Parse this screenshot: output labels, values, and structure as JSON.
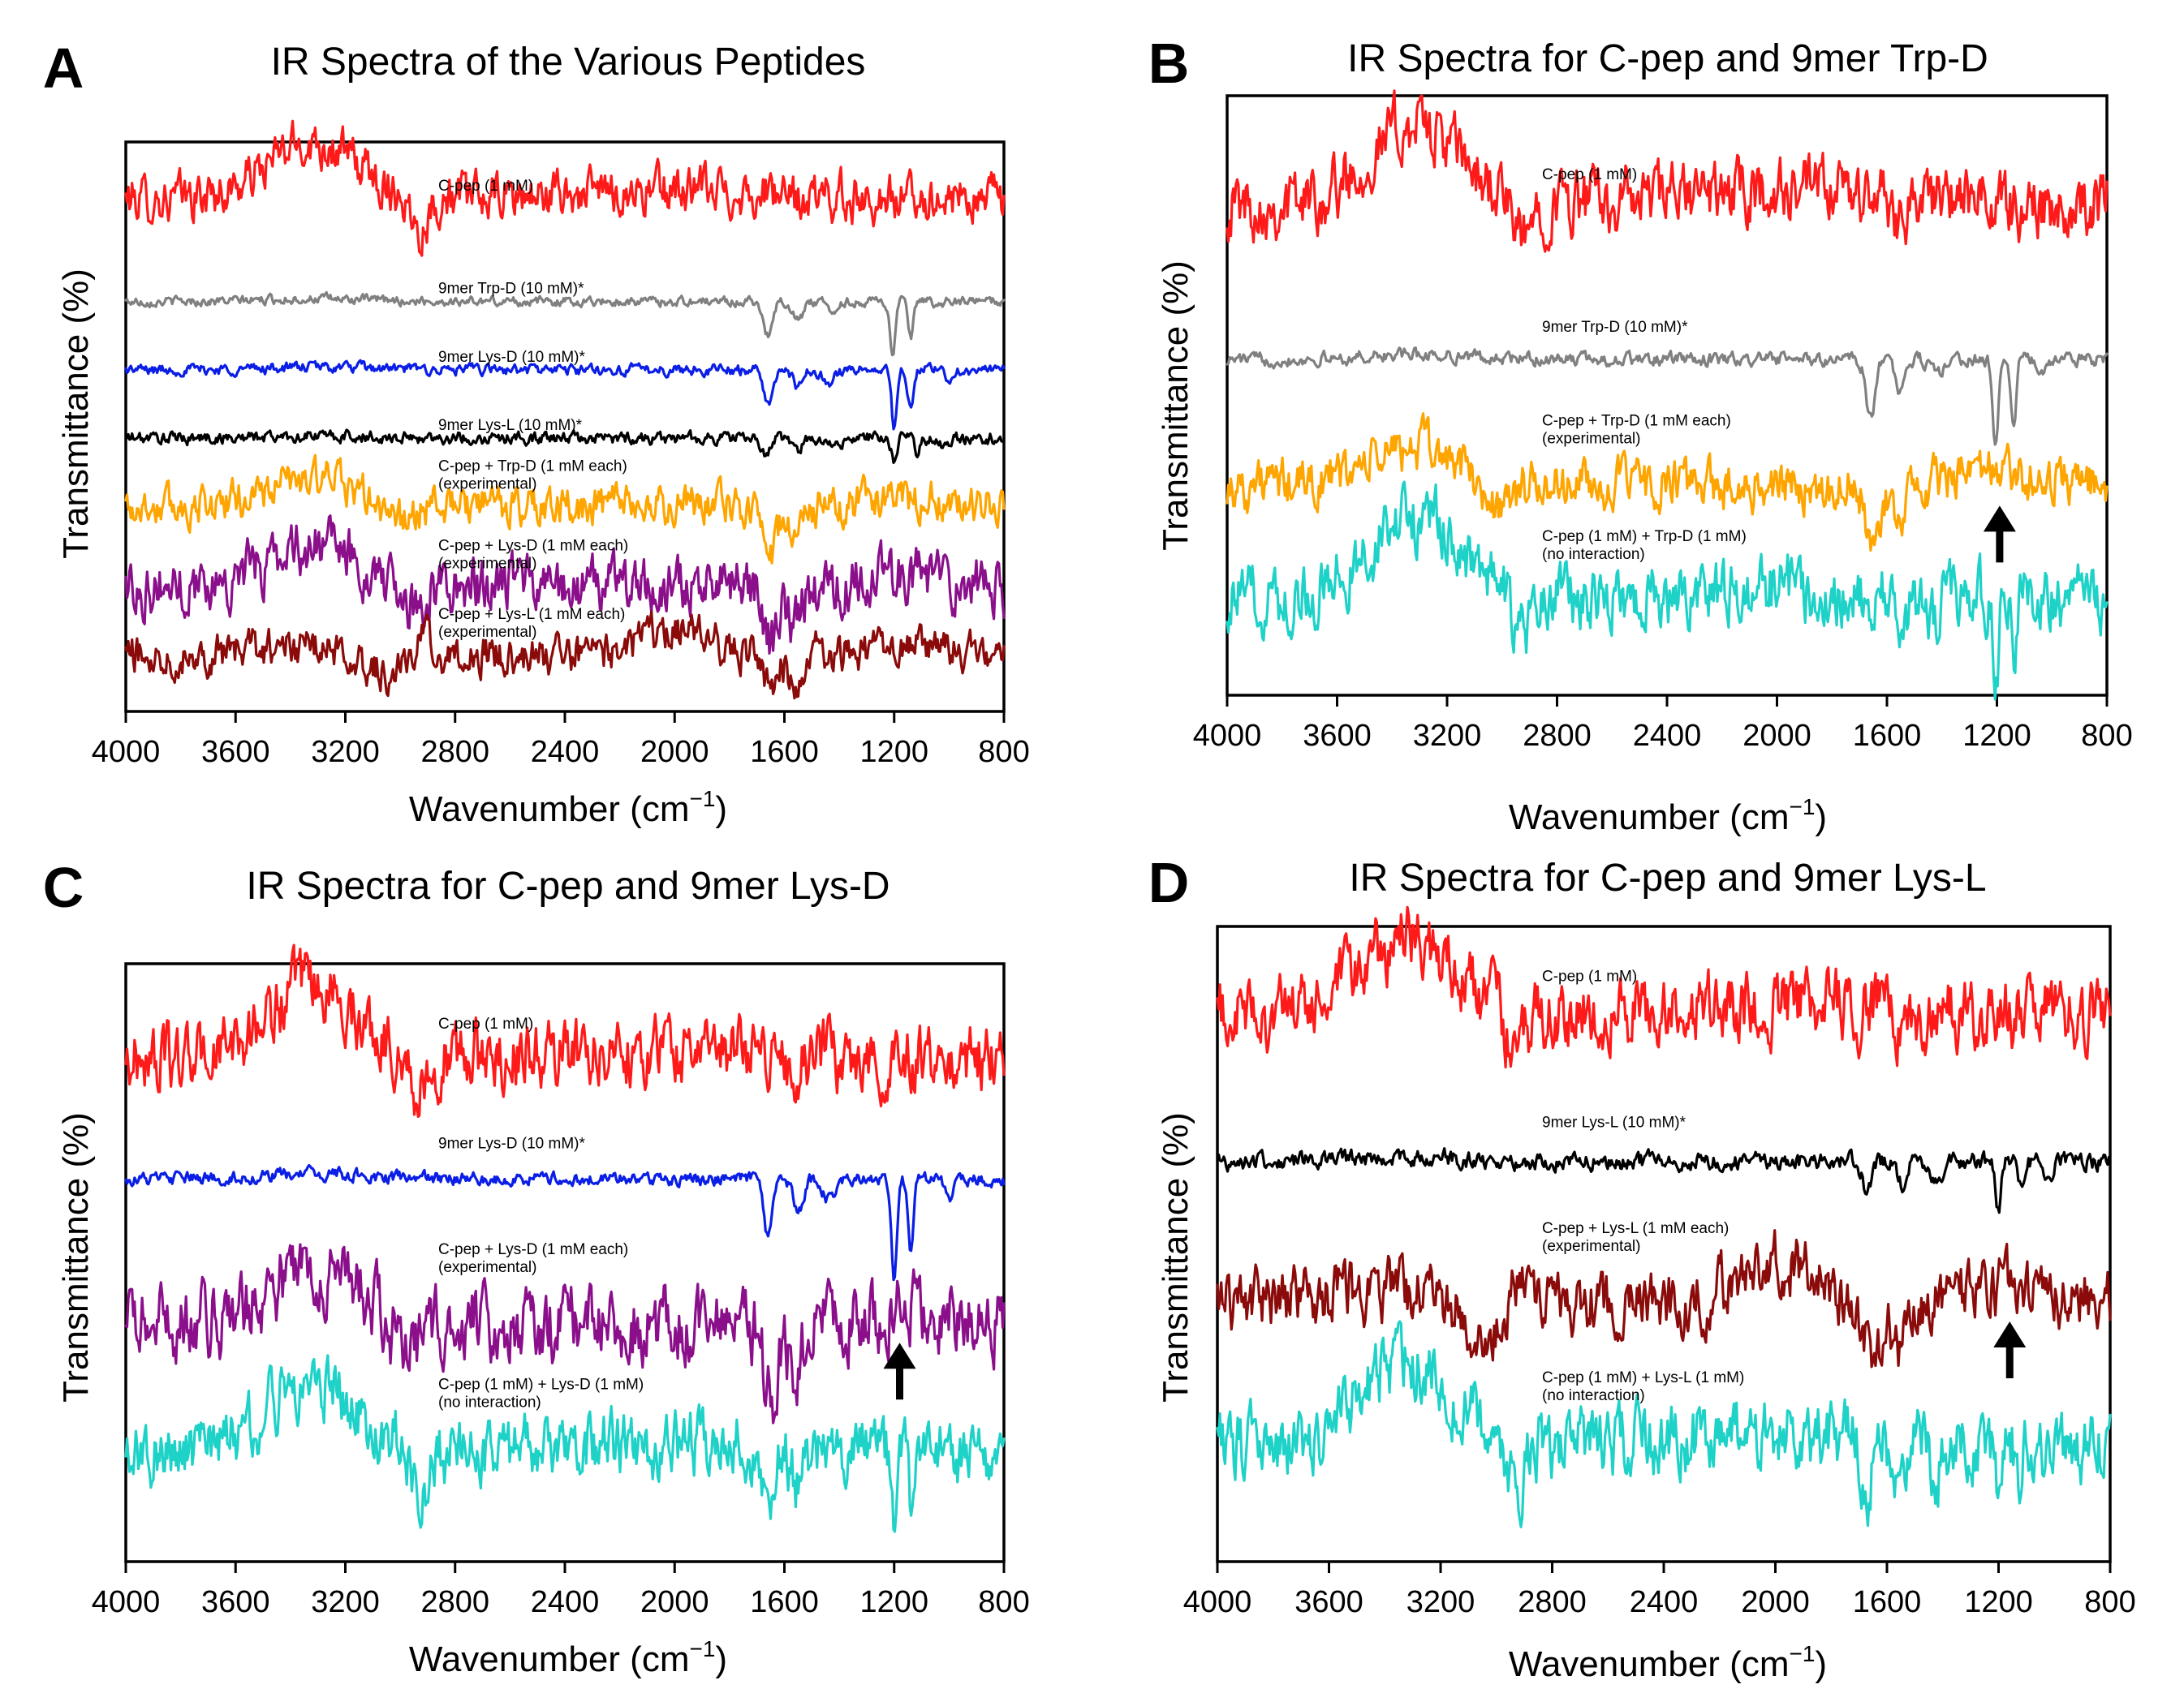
{
  "figure": {
    "x_axis_label": "Wavenumber (cm",
    "x_axis_label_sup": "−1",
    "x_axis_label_close": ")",
    "y_axis_label": "Transmittance  (%)"
  },
  "chart_data": [
    {
      "panel": "A",
      "type": "line",
      "title": "IR Spectra of the Various Peptides",
      "xlabel": "Wavenumber (cm⁻¹)",
      "ylabel": "Transmittance  (%)",
      "xlim": [
        4000,
        800
      ],
      "x_reversed": true,
      "xticks": [
        4000,
        3600,
        3200,
        2800,
        2400,
        2000,
        1600,
        1200,
        800
      ],
      "y_units": "arbitrary offset (stacked spectra)",
      "series": [
        {
          "name": "C-pep (1 mM)",
          "label_lines": [
            "C-pep (1 mM)"
          ],
          "color": "#ff1a1a",
          "profile": "cpep",
          "offset": 90,
          "amplitude": 20,
          "noise": 3.0
        },
        {
          "name": "9mer Trp-D (10 mM)*",
          "label_lines": [
            "9mer Trp-D (10 mM)*"
          ],
          "color": "#808080",
          "profile": "trp",
          "offset": 72,
          "amplitude": 12,
          "noise": 0.6
        },
        {
          "name": "9mer Lys-D (10 mM)*",
          "label_lines": [
            "9mer Lys-D (10 mM)*"
          ],
          "color": "#0a1ee6",
          "profile": "lysd",
          "offset": 60,
          "amplitude": 12,
          "noise": 0.7
        },
        {
          "name": "9mer Lys-L (10 mM)*",
          "label_lines": [
            "9mer Lys-L (10 mM)*"
          ],
          "color": "#000000",
          "profile": "lysl",
          "offset": 48,
          "amplitude": 7,
          "noise": 0.8
        },
        {
          "name": "C-pep + Trp-D (1 mM each) (experimental)",
          "label_lines": [
            "C-pep + Trp-D (1 mM each)",
            "(experimental)"
          ],
          "color": "#ffa500",
          "profile": "mix_trp_exp",
          "offset": 36,
          "amplitude": 14,
          "noise": 2.5
        },
        {
          "name": "C-pep + Lys-D (1 mM each) (experimental)",
          "label_lines": [
            "C-pep + Lys-D (1 mM each)",
            "(experimental)"
          ],
          "color": "#8b0f8b",
          "profile": "mix_lysd_exp",
          "offset": 22,
          "amplitude": 16,
          "noise": 3.5
        },
        {
          "name": "C-pep + Lys-L (1 mM each) (experimental)",
          "label_lines": [
            "C-pep + Lys-L (1 mM each)",
            "(experimental)"
          ],
          "color": "#8b0a0a",
          "profile": "mix_lysl_exp",
          "offset": 10,
          "amplitude": 12,
          "noise": 2.5
        }
      ],
      "annotations": []
    },
    {
      "panel": "B",
      "type": "line",
      "title": "IR Spectra for C-pep and 9mer Trp-D",
      "xlabel": "Wavenumber (cm⁻¹)",
      "ylabel": "Transmittance  (%)",
      "xlim": [
        4000,
        800
      ],
      "x_reversed": true,
      "xticks": [
        4000,
        3600,
        3200,
        2800,
        2400,
        2000,
        1600,
        1200,
        800
      ],
      "y_units": "arbitrary offset (stacked spectra)",
      "series": [
        {
          "name": "C-pep (1 mM)",
          "label_lines": [
            "C-pep (1 mM)"
          ],
          "color": "#ff1a1a",
          "profile": "cpep",
          "offset": 82,
          "amplitude": 26,
          "noise": 4.0
        },
        {
          "name": "9mer Trp-D (10 mM)*",
          "label_lines": [
            "9mer Trp-D (10 mM)*"
          ],
          "color": "#808080",
          "profile": "trp",
          "offset": 56,
          "amplitude": 20,
          "noise": 0.8
        },
        {
          "name": "C-pep + Trp-D (1 mM each) (experimental)",
          "label_lines": [
            "C-pep + Trp-D (1 mM each)",
            "(experimental)"
          ],
          "color": "#ffa500",
          "profile": "mix_trp_exp",
          "offset": 35,
          "amplitude": 18,
          "noise": 3.0
        },
        {
          "name": "C-pep (1 mM) + Trp-D (1 mM) (no interaction)",
          "label_lines": [
            "C-pep (1 mM) + Trp-D (1 mM)",
            "(no interaction)"
          ],
          "color": "#1ed2c8",
          "profile": "sum_trp",
          "offset": 16,
          "amplitude": 26,
          "noise": 4.0
        }
      ],
      "annotations": [
        {
          "type": "arrow",
          "x": 1190,
          "direction": "up",
          "series": "C-pep + Trp-D (1 mM each) (experimental)"
        }
      ]
    },
    {
      "panel": "C",
      "type": "line",
      "title": "IR Spectra for C-pep and 9mer Lys-D",
      "xlabel": "Wavenumber (cm⁻¹)",
      "ylabel": "Transmittance  (%)",
      "xlim": [
        4000,
        800
      ],
      "x_reversed": true,
      "xticks": [
        4000,
        3600,
        3200,
        2800,
        2400,
        2000,
        1600,
        1200,
        800
      ],
      "y_units": "arbitrary offset (stacked spectra)",
      "series": [
        {
          "name": "C-pep (1 mM)",
          "label_lines": [
            "C-pep (1 mM)"
          ],
          "color": "#ff1a1a",
          "profile": "cpep",
          "offset": 84,
          "amplitude": 24,
          "noise": 4.0
        },
        {
          "name": "9mer Lys-D (10 mM)*",
          "label_lines": [
            "9mer Lys-D (10 mM)*"
          ],
          "color": "#0a1ee6",
          "profile": "lysd",
          "offset": 64,
          "amplitude": 20,
          "noise": 0.8
        },
        {
          "name": "C-pep + Lys-D (1 mM each) (experimental)",
          "label_lines": [
            "C-pep + Lys-D (1 mM each)",
            "(experimental)"
          ],
          "color": "#8b0f8b",
          "profile": "mix_lysd_exp",
          "offset": 40,
          "amplitude": 20,
          "noise": 4.5
        },
        {
          "name": "C-pep (1 mM) + Lys-D (1 mM) (no interaction)",
          "label_lines": [
            "C-pep (1 mM) + Lys-D (1 mM)",
            "(no interaction)"
          ],
          "color": "#1ed2c8",
          "profile": "sum_lysd",
          "offset": 18,
          "amplitude": 24,
          "noise": 4.0
        }
      ],
      "annotations": [
        {
          "type": "arrow",
          "x": 1180,
          "direction": "up",
          "series": "C-pep + Lys-D (1 mM each) (experimental)"
        }
      ]
    },
    {
      "panel": "D",
      "type": "line",
      "title": "IR Spectra for C-pep and 9mer Lys-L",
      "xlabel": "Wavenumber (cm⁻¹)",
      "ylabel": "Transmittance  (%)",
      "xlim": [
        4000,
        800
      ],
      "x_reversed": true,
      "xticks": [
        4000,
        3600,
        3200,
        2800,
        2400,
        2000,
        1600,
        1200,
        800
      ],
      "y_units": "arbitrary offset (stacked spectra)",
      "series": [
        {
          "name": "C-pep (1 mM)",
          "label_lines": [
            "C-pep (1 mM)"
          ],
          "color": "#ff1a1a",
          "profile": "cpep",
          "offset": 86,
          "amplitude": 24,
          "noise": 4.0
        },
        {
          "name": "9mer Lys-L (10 mM)*",
          "label_lines": [
            "9mer Lys-L (10 mM)*"
          ],
          "color": "#000000",
          "profile": "lysl",
          "offset": 63,
          "amplitude": 12,
          "noise": 1.0
        },
        {
          "name": "C-pep + Lys-L (1 mM each) (experimental)",
          "label_lines": [
            "C-pep + Lys-L (1 mM each)",
            "(experimental)"
          ],
          "color": "#8b0a0a",
          "profile": "mix_lysl_exp",
          "offset": 41,
          "amplitude": 18,
          "noise": 3.5
        },
        {
          "name": "C-pep (1 mM) + Lys-L (1 mM) (no interaction)",
          "label_lines": [
            "C-pep (1 mM) + Lys-L (1 mM)",
            "(no interaction)"
          ],
          "color": "#1ed2c8",
          "profile": "sum_lysl",
          "offset": 18,
          "amplitude": 26,
          "noise": 4.0
        }
      ],
      "annotations": [
        {
          "type": "arrow",
          "x": 1160,
          "direction": "up",
          "series": "C-pep + Lys-L (1 mM each) (experimental)"
        }
      ]
    }
  ]
}
